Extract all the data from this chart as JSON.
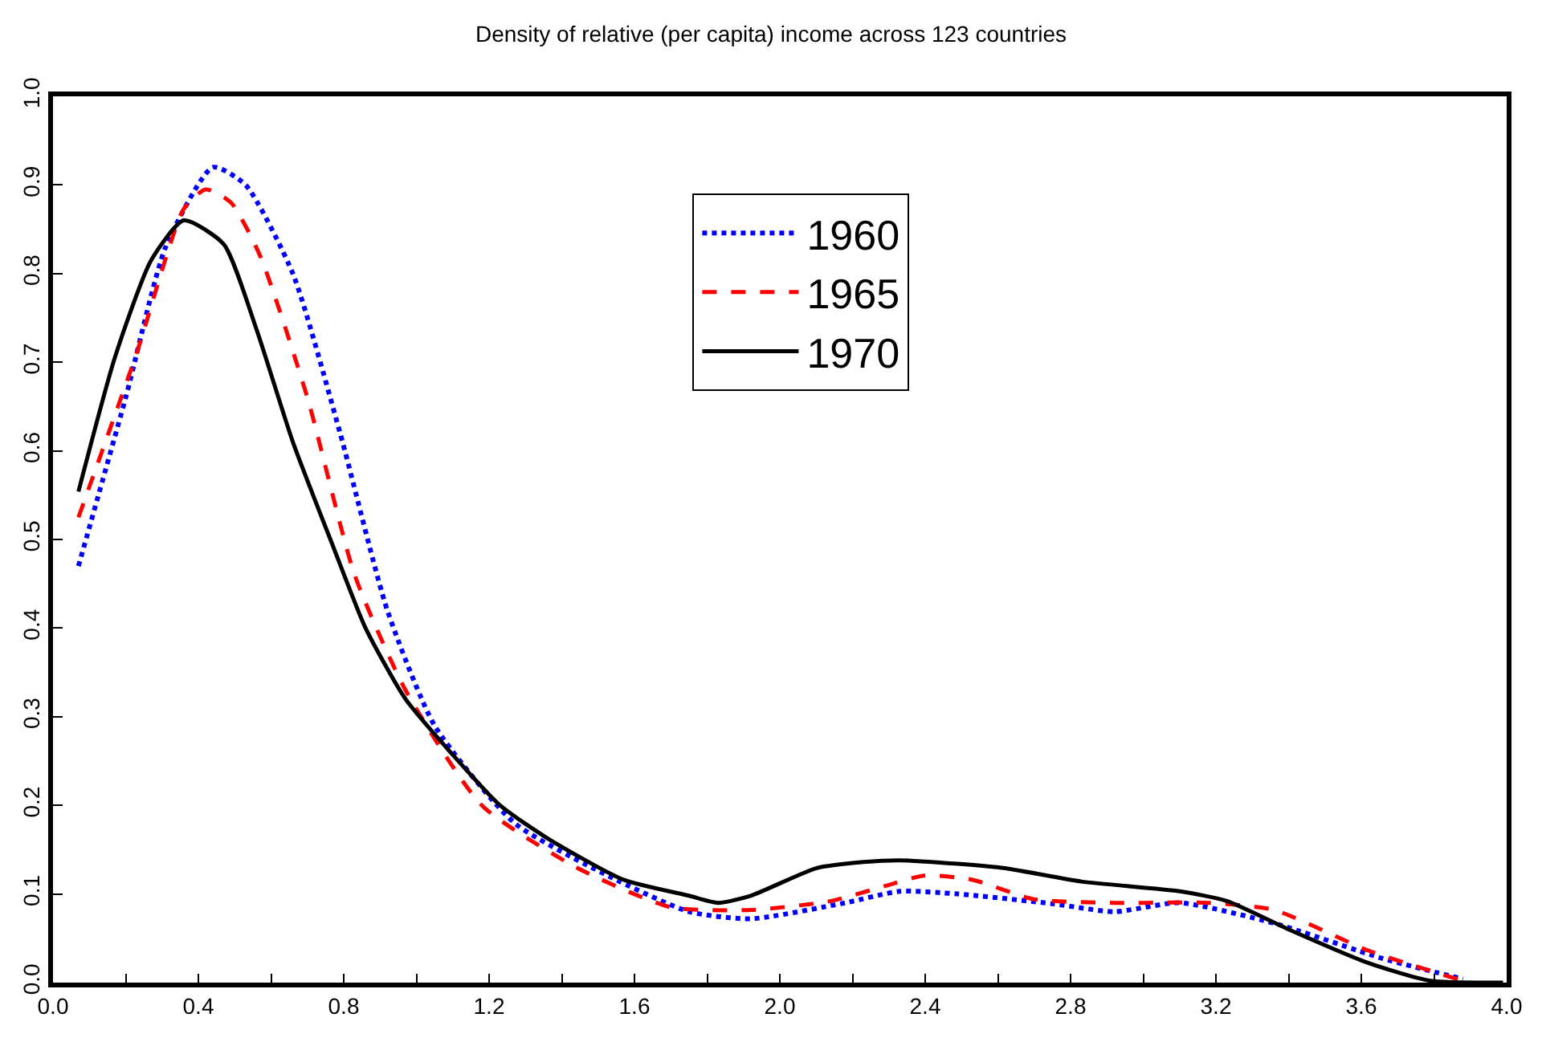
{
  "chart_data": {
    "type": "line",
    "title": "Density of relative (per capita) income across 123 countries",
    "xlim": [
      0,
      4
    ],
    "ylim": [
      0,
      1
    ],
    "xticks": [
      {
        "value": 0,
        "label": "0.0"
      },
      {
        "value": 0.2,
        "label": null
      },
      0.4,
      {
        "value": 0.6,
        "label": null
      },
      0.8,
      {
        "value": 1.0,
        "label": null
      },
      1.2,
      {
        "value": 1.4,
        "label": null
      },
      1.6,
      {
        "value": 1.8,
        "label": null
      },
      {
        "value": 2.0,
        "label": "2.0"
      },
      {
        "value": 2.2,
        "label": null
      },
      2.4,
      {
        "value": 2.6,
        "label": null
      },
      2.8,
      {
        "value": 3.0,
        "label": null
      },
      3.2,
      {
        "value": 3.4,
        "label": null
      },
      3.6,
      {
        "value": 3.8,
        "label": null
      },
      {
        "value": 4.0,
        "label": "4.0"
      }
    ],
    "yticks": [
      {
        "value": 0,
        "label": "0.0"
      },
      0.1,
      0.2,
      0.3,
      0.4,
      0.5,
      0.6,
      0.7,
      0.8,
      0.9,
      {
        "value": 1.0,
        "label": "1.0"
      }
    ],
    "legend": "top",
    "marker": "none",
    "series": [
      {
        "name": "1960",
        "color": "#0000ff",
        "line_style": "dotted",
        "x": [
          0.07,
          0.2,
          0.31,
          0.44,
          0.53,
          0.66,
          0.79,
          0.92,
          1.05,
          1.27,
          1.53,
          1.75,
          1.92,
          2.18,
          2.33,
          2.49,
          2.75,
          2.92,
          3.1,
          3.36,
          3.66,
          3.88
        ],
        "values": [
          0.47,
          0.66,
          0.83,
          0.92,
          0.9,
          0.8,
          0.62,
          0.42,
          0.29,
          0.18,
          0.12,
          0.08,
          0.072,
          0.09,
          0.103,
          0.1,
          0.089,
          0.08,
          0.09,
          0.067,
          0.027,
          0.004
        ]
      },
      {
        "name": "1965",
        "color": "#ff0000",
        "line_style": "dashed",
        "x": [
          0.07,
          0.23,
          0.36,
          0.42,
          0.49,
          0.57,
          0.7,
          0.83,
          0.97,
          1.18,
          1.44,
          1.7,
          1.92,
          2.14,
          2.29,
          2.4,
          2.53,
          2.7,
          2.92,
          3.18,
          3.36,
          3.62,
          3.88
        ],
        "values": [
          0.525,
          0.71,
          0.873,
          0.895,
          0.88,
          0.82,
          0.66,
          0.46,
          0.33,
          0.2,
          0.13,
          0.085,
          0.082,
          0.092,
          0.109,
          0.121,
          0.116,
          0.094,
          0.09,
          0.09,
          0.082,
          0.036,
          0.002
        ]
      },
      {
        "name": "1970",
        "color": "#000000",
        "line_style": "solid",
        "x": [
          0.07,
          0.17,
          0.27,
          0.36,
          0.47,
          0.56,
          0.66,
          0.77,
          0.86,
          0.97,
          1.1,
          1.23,
          1.36,
          1.57,
          1.75,
          1.83,
          1.92,
          2.1,
          2.23,
          2.33,
          2.49,
          2.62,
          2.83,
          3.1,
          3.23,
          3.4,
          3.62,
          3.79,
          3.99
        ],
        "values": [
          0.554,
          0.705,
          0.815,
          0.86,
          0.833,
          0.737,
          0.61,
          0.493,
          0.4,
          0.32,
          0.257,
          0.2,
          0.163,
          0.116,
          0.098,
          0.09,
          0.098,
          0.129,
          0.136,
          0.138,
          0.134,
          0.129,
          0.114,
          0.103,
          0.092,
          0.06,
          0.022,
          0.002,
          0
        ]
      }
    ]
  }
}
